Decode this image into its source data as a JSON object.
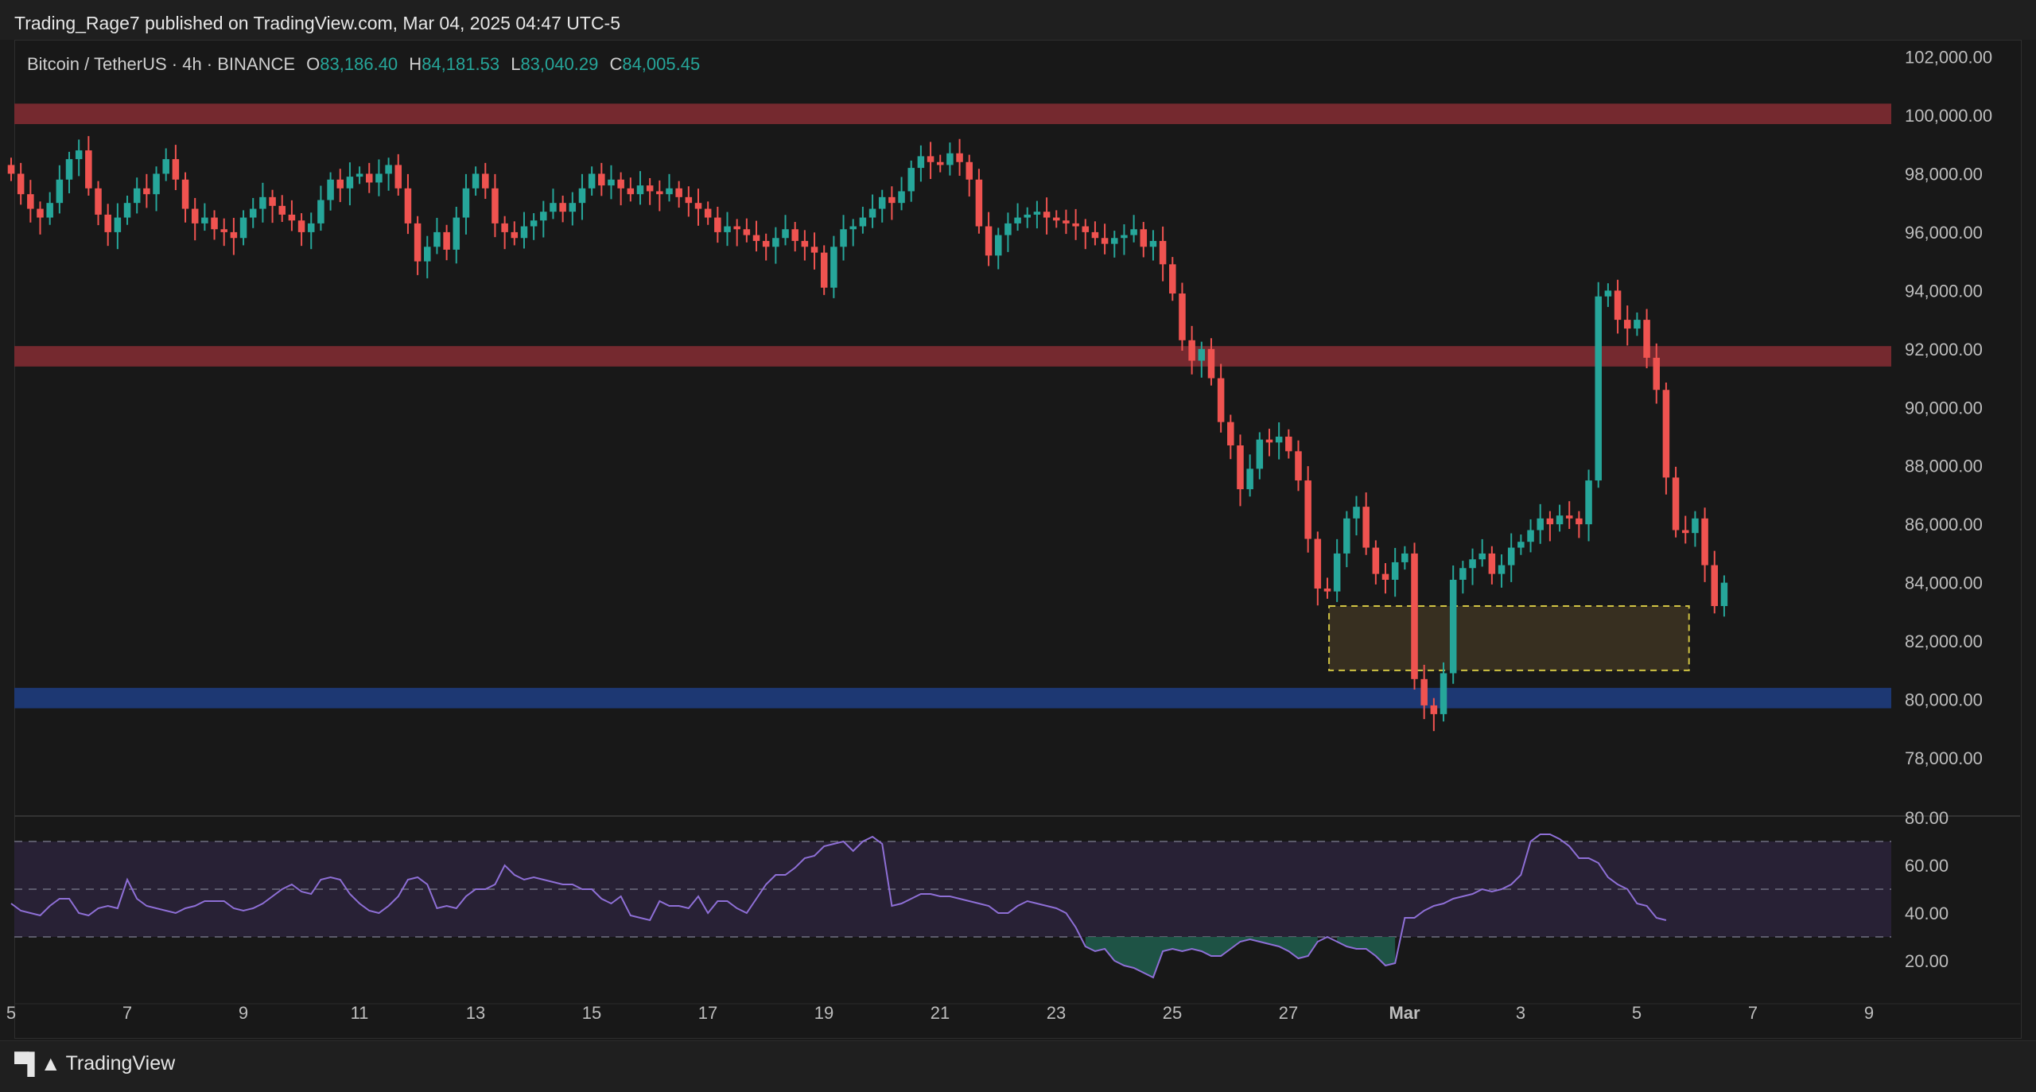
{
  "header": {
    "attribution": "Trading_Rage7 published on TradingView.com, Mar 04, 2025 04:47 UTC-5"
  },
  "symbol": {
    "name": "Bitcoin / TetherUS · 4h · BINANCE",
    "open_label": "O",
    "open": "83,186.40",
    "high_label": "H",
    "high": "84,181.53",
    "low_label": "L",
    "low": "83,040.29",
    "close_label": "C",
    "close": "84,005.45"
  },
  "footer": {
    "logo_text": "TradingView"
  },
  "colors": {
    "up": "#26a69a",
    "down": "#ef5350",
    "resistance_zone": "#7a2a30",
    "support_zone": "#1e3a78",
    "demand_box_fill": "#3d3422",
    "demand_box_border": "#f2e34c",
    "rsi_line": "#8e6fd6",
    "rsi_band": "#2a2238",
    "rsi_oversold_fill": "#1f5a4a",
    "grid": "#2a2a2a",
    "axis_text": "#bdbdbd"
  },
  "chart_data": [
    {
      "type": "candlestick",
      "title": "Bitcoin / TetherUS · 4h · BINANCE",
      "ylim": [
        76000,
        103000
      ],
      "y_ticks": [
        "78,000.00",
        "80,000.00",
        "82,000.00",
        "84,000.00",
        "86,000.00",
        "88,000.00",
        "90,000.00",
        "92,000.00",
        "94,000.00",
        "96,000.00",
        "98,000.00",
        "100,000.00",
        "102,000.00"
      ],
      "y_tick_values": [
        78000,
        80000,
        82000,
        84000,
        86000,
        88000,
        90000,
        92000,
        94000,
        96000,
        98000,
        100000,
        102000
      ],
      "x_ticks": [
        "5",
        "7",
        "9",
        "11",
        "13",
        "15",
        "17",
        "19",
        "21",
        "23",
        "25",
        "27",
        "Mar",
        "3",
        "5",
        "7",
        "9"
      ],
      "x_range_days": [
        0,
        36
      ],
      "x_tick_days": [
        0,
        2,
        4,
        6,
        8,
        10,
        12,
        14,
        16,
        18,
        20,
        22,
        24,
        26,
        28,
        30,
        32
      ],
      "candle_interval_days": 0.1667,
      "first_candle_day": 0,
      "closes": [
        98000,
        97300,
        96800,
        96500,
        97000,
        97800,
        98500,
        98800,
        97500,
        96600,
        96000,
        96500,
        97000,
        97500,
        97300,
        98000,
        98500,
        97800,
        96800,
        96300,
        96500,
        96100,
        96000,
        95800,
        96500,
        96800,
        97200,
        96900,
        96600,
        96400,
        96000,
        96300,
        97100,
        97800,
        97500,
        97900,
        98000,
        97700,
        98000,
        98300,
        97500,
        96300,
        95000,
        95500,
        96000,
        95400,
        96500,
        97500,
        98000,
        97500,
        96300,
        96000,
        95800,
        96200,
        96400,
        96700,
        97000,
        96700,
        97000,
        97500,
        98000,
        97600,
        97800,
        97500,
        97300,
        97600,
        97400,
        97300,
        97500,
        97200,
        97000,
        96800,
        96500,
        96000,
        96200,
        96100,
        95900,
        95700,
        95500,
        95800,
        96100,
        95700,
        95500,
        95300,
        94100,
        95500,
        96100,
        96200,
        96500,
        96800,
        97200,
        97000,
        97400,
        98200,
        98600,
        98400,
        98300,
        98700,
        98400,
        97800,
        96200,
        95200,
        95900,
        96300,
        96500,
        96600,
        96700,
        96500,
        96400,
        96300,
        96200,
        96000,
        95800,
        95600,
        95800,
        95900,
        96100,
        95500,
        95700,
        94900,
        93900,
        92300,
        91600,
        92000,
        91000,
        89500,
        88700,
        87200,
        87900,
        88900,
        88800,
        89000,
        88500,
        87500,
        85500,
        83800,
        83700,
        85000,
        86200,
        86600,
        85200,
        84300,
        84100,
        84700,
        85000,
        80700,
        79800,
        79500,
        80900,
        84100,
        84500,
        84800,
        85000,
        84300,
        84600,
        85200,
        85400,
        85800,
        86200,
        86000,
        86300,
        86200,
        86000,
        87500,
        93800,
        94000,
        93000,
        92700,
        93000,
        91700,
        90600,
        87600,
        85800,
        85700,
        86200,
        84600,
        83200,
        84000
      ],
      "rsi": {
        "ylim": [
          10,
          80
        ],
        "y_ticks": [
          "20.00",
          "40.00",
          "60.00",
          "80.00"
        ],
        "y_tick_values": [
          20,
          40,
          60,
          80
        ],
        "upper_band": 70,
        "middle": 50,
        "lower_band": 30,
        "values": [
          44,
          41,
          40,
          39,
          43,
          46,
          46,
          40,
          39,
          42,
          43,
          42,
          54,
          46,
          43,
          42,
          41,
          40,
          42,
          43,
          45,
          45,
          45,
          42,
          41,
          42,
          44,
          47,
          50,
          52,
          49,
          48,
          54,
          55,
          54,
          48,
          44,
          41,
          40,
          43,
          47,
          54,
          55,
          52,
          42,
          43,
          42,
          47,
          50,
          50,
          52,
          60,
          56,
          54,
          55,
          54,
          53,
          52,
          52,
          50,
          50,
          46,
          44,
          47,
          39,
          38,
          37,
          45,
          43,
          43,
          42,
          47,
          40,
          45,
          45,
          42,
          40,
          46,
          52,
          56,
          56,
          59,
          63,
          64,
          68,
          69,
          70,
          66,
          70,
          72,
          69,
          43,
          44,
          46,
          48,
          48,
          47,
          47,
          46,
          45,
          44,
          43,
          40,
          40,
          43,
          45,
          44,
          43,
          42,
          40,
          34,
          26,
          24,
          25,
          20,
          18,
          17,
          15,
          13,
          24,
          25,
          24,
          25,
          24,
          22,
          22,
          25,
          28,
          29,
          28,
          27,
          26,
          24,
          21,
          22,
          28,
          30,
          28,
          26,
          25,
          25,
          22,
          18,
          19,
          38,
          38,
          41,
          43,
          44,
          46,
          47,
          48,
          50,
          49,
          50,
          52,
          56,
          70,
          73,
          73,
          71,
          68,
          63,
          63,
          61,
          55,
          52,
          50,
          44,
          43,
          38,
          37
        ]
      }
    }
  ],
  "zones": {
    "resistance_upper": [
      99700,
      100400
    ],
    "resistance_lower": [
      91400,
      92100
    ],
    "support": [
      79700,
      80400
    ],
    "demand_box": {
      "price_low": 81000,
      "price_high": 83200,
      "day_start": 22.7,
      "day_end": 28.9
    }
  }
}
